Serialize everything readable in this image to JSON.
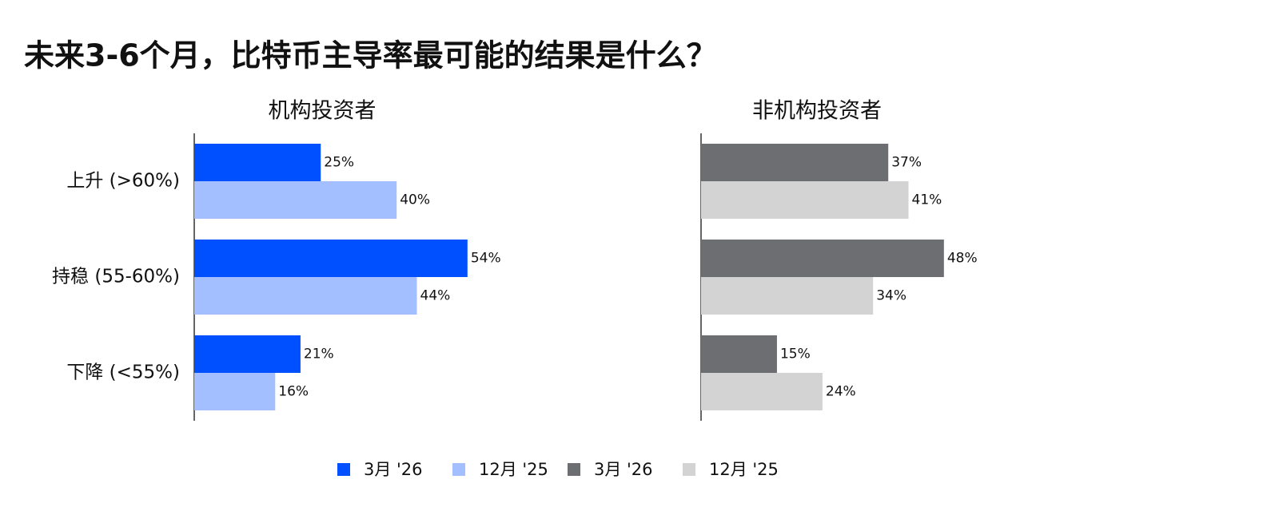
{
  "title": "未来3-6个月，比特币主导率最可能的结果是什么？",
  "chart_data": [
    {
      "type": "bar",
      "orientation": "horizontal",
      "title": "机构投资者",
      "categories": [
        "上升 (>60%)",
        "持稳 (55-60%)",
        "下降 (<55%)"
      ],
      "series": [
        {
          "name": "3月 '26",
          "color": "#0050ff",
          "values": [
            25,
            54,
            21
          ],
          "value_labels": [
            "25%",
            "54%",
            "21%"
          ]
        },
        {
          "name": "12月 '25",
          "color": "#a3bfff",
          "values": [
            40,
            44,
            16
          ],
          "value_labels": [
            "40%",
            "44%",
            "16%"
          ]
        }
      ]
    },
    {
      "type": "bar",
      "orientation": "horizontal",
      "title": "非机构投资者",
      "categories": [
        null,
        null,
        null
      ],
      "series": [
        {
          "name": "3月 '26",
          "color": "#6d6e71",
          "values": [
            37,
            48,
            15
          ],
          "value_labels": [
            "37%",
            "48%",
            "15%"
          ]
        },
        {
          "name": "12月 '25",
          "color": "#d3d3d3",
          "values": [
            41,
            34,
            24
          ],
          "value_labels": [
            "41%",
            "34%",
            "24%"
          ]
        }
      ]
    }
  ]
}
